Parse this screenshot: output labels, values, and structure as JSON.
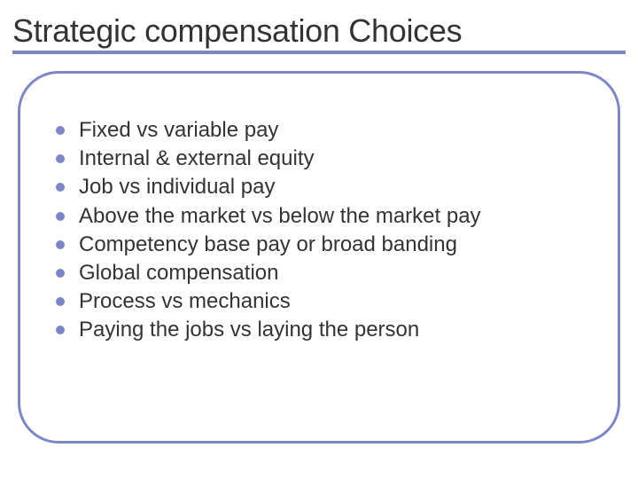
{
  "slide": {
    "title": "Strategic compensation Choices",
    "bullets": [
      "Fixed vs variable pay",
      "Internal & external equity",
      "Job vs individual pay",
      "Above the market vs below the market pay",
      "Competency base pay or broad banding",
      "Global  compensation",
      "Process vs mechanics",
      "Paying the jobs vs laying the person"
    ]
  },
  "style": {
    "accent_color": "#7b86c8",
    "text_color": "#333333",
    "background_color": "#ffffff",
    "title_fontsize": 36,
    "bullet_fontsize": 24,
    "border_width": 3,
    "border_radius": 46,
    "underline_height": 4,
    "bullet_dot_size": 10
  }
}
